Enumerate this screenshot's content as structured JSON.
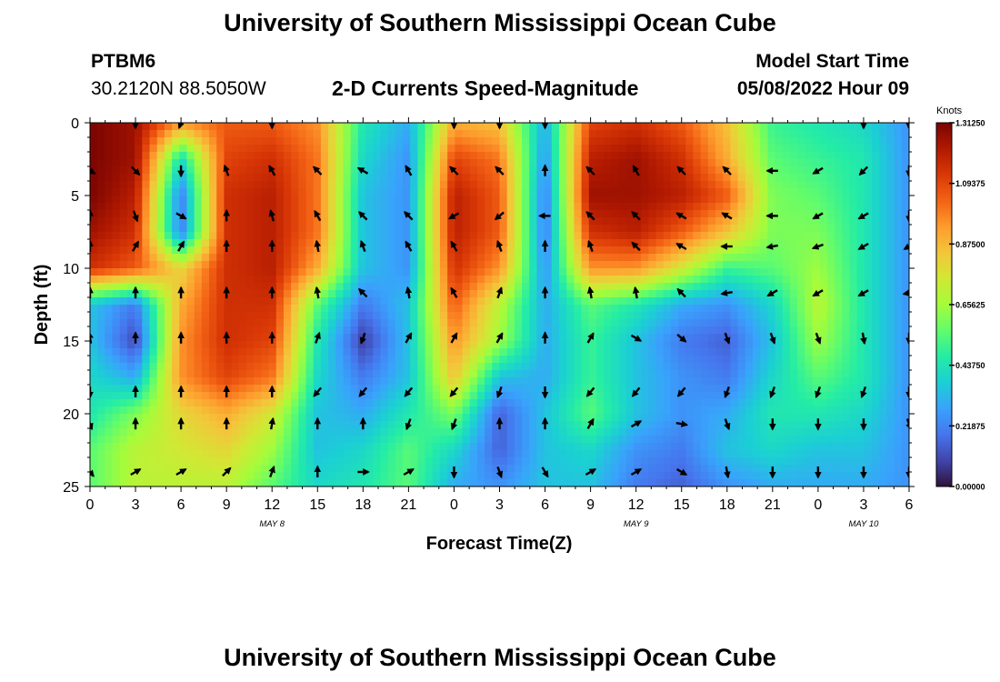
{
  "header": {
    "title": "University of Southern Mississippi Ocean Cube",
    "station_id": "PTBM6",
    "station_coords": "30.2120N  88.5050W",
    "subtitle": "2-D Currents Speed-Magnitude",
    "model_start_label": "Model Start Time",
    "model_start_value": "05/08/2022 Hour 09"
  },
  "footer": {
    "title": "University of Southern Mississippi Ocean Cube"
  },
  "chart_data": {
    "type": "heatmap",
    "title": "2-D Currents Speed-Magnitude",
    "xlabel": "Forecast Time(Z)",
    "ylabel": "Depth (ft)",
    "x_tick_labels": [
      "0",
      "3",
      "6",
      "9",
      "12",
      "15",
      "18",
      "21",
      "0",
      "3",
      "6",
      "9",
      "12",
      "15",
      "18",
      "21",
      "0",
      "3",
      "6"
    ],
    "x_tick_hours": [
      0,
      3,
      6,
      9,
      12,
      15,
      18,
      21,
      24,
      27,
      30,
      33,
      36,
      39,
      42,
      45,
      48,
      51,
      54
    ],
    "xlim_hours": [
      0,
      54
    ],
    "date_labels": [
      {
        "text": "MAY 8",
        "hour": 12
      },
      {
        "text": "MAY 9",
        "hour": 36
      },
      {
        "text": "MAY 10",
        "hour": 51
      }
    ],
    "y_ticks": [
      0,
      5,
      10,
      15,
      20,
      25
    ],
    "ylim": [
      0,
      25
    ],
    "y_inverted": true,
    "colorbar": {
      "unit": "Knots",
      "labels": [
        "1.31250",
        "1.09375",
        "0.87500",
        "0.65625",
        "0.43750",
        "0.21875",
        "0.00000"
      ],
      "min": 0.0,
      "max": 1.3125,
      "colors": [
        "#30123b",
        "#4145ab",
        "#4675ed",
        "#39a2fc",
        "#1bcfd4",
        "#24eca6",
        "#61fc6c",
        "#a4fc3b",
        "#d1e834",
        "#f3c63a",
        "#fe9b2d",
        "#f36315",
        "#d93806",
        "#b11901",
        "#7a0402"
      ]
    },
    "speed_hours": [
      0,
      3,
      6,
      9,
      12,
      15,
      18,
      21,
      24,
      27,
      30,
      33,
      36,
      39,
      42,
      45,
      48,
      51,
      54
    ],
    "speed_depths": [
      0,
      2.5,
      5,
      7.5,
      10,
      12.5,
      15,
      17.5,
      20,
      22.5,
      25
    ],
    "speed": [
      [
        1.31,
        1.25,
        0.95,
        1.05,
        1.05,
        0.95,
        0.45,
        0.3,
        0.9,
        0.85,
        0.3,
        1.1,
        1.15,
        1.05,
        0.85,
        0.5,
        0.45,
        0.4,
        0.25
      ],
      [
        1.31,
        1.25,
        0.4,
        1.1,
        1.15,
        1.0,
        0.4,
        0.25,
        1.1,
        1.0,
        0.25,
        1.2,
        1.25,
        1.15,
        0.9,
        0.55,
        0.5,
        0.45,
        0.25
      ],
      [
        1.31,
        1.2,
        0.2,
        1.15,
        1.2,
        1.0,
        0.35,
        0.25,
        1.2,
        1.05,
        0.2,
        1.25,
        1.25,
        1.2,
        1.05,
        0.6,
        0.55,
        0.45,
        0.25
      ],
      [
        1.25,
        1.15,
        0.2,
        1.15,
        1.2,
        1.0,
        0.35,
        0.25,
        1.2,
        1.05,
        0.2,
        1.15,
        1.2,
        1.05,
        0.85,
        0.6,
        0.6,
        0.45,
        0.25
      ],
      [
        1.15,
        1.05,
        0.8,
        1.15,
        1.2,
        0.9,
        0.35,
        0.25,
        1.15,
        0.95,
        0.25,
        0.95,
        0.95,
        0.75,
        0.5,
        0.55,
        0.65,
        0.45,
        0.25
      ],
      [
        0.35,
        0.2,
        0.9,
        1.15,
        1.15,
        0.55,
        0.2,
        0.35,
        1.05,
        0.7,
        0.3,
        0.55,
        0.45,
        0.3,
        0.25,
        0.4,
        0.7,
        0.45,
        0.25
      ],
      [
        0.35,
        0.1,
        0.95,
        1.15,
        1.1,
        0.45,
        0.08,
        0.35,
        0.95,
        0.65,
        0.3,
        0.5,
        0.35,
        0.2,
        0.15,
        0.35,
        0.65,
        0.45,
        0.25
      ],
      [
        0.4,
        0.3,
        0.95,
        1.1,
        1.0,
        0.4,
        0.2,
        0.35,
        0.85,
        0.35,
        0.3,
        0.5,
        0.35,
        0.25,
        0.2,
        0.4,
        0.55,
        0.45,
        0.25
      ],
      [
        0.45,
        0.6,
        0.8,
        0.9,
        0.75,
        0.35,
        0.3,
        0.45,
        0.6,
        0.15,
        0.35,
        0.55,
        0.35,
        0.25,
        0.3,
        0.45,
        0.45,
        0.4,
        0.25
      ],
      [
        0.55,
        0.7,
        0.75,
        0.8,
        0.65,
        0.35,
        0.4,
        0.55,
        0.4,
        0.15,
        0.35,
        0.4,
        0.25,
        0.2,
        0.35,
        0.4,
        0.35,
        0.35,
        0.25
      ],
      [
        0.55,
        0.7,
        0.7,
        0.7,
        0.55,
        0.4,
        0.45,
        0.55,
        0.3,
        0.25,
        0.35,
        0.35,
        0.2,
        0.15,
        0.25,
        0.3,
        0.3,
        0.3,
        0.25
      ]
    ],
    "vectors": {
      "hours": [
        0,
        3,
        6,
        9,
        12,
        15,
        18,
        21,
        24,
        27,
        30,
        33,
        36,
        39,
        42,
        45,
        48,
        51,
        54
      ],
      "depths": [
        0,
        3.3,
        6.4,
        8.5,
        11.7,
        14.8,
        18.5,
        20.7,
        24
      ],
      "angles_deg": [
        [
          null,
          180,
          200,
          null,
          180,
          null,
          null,
          null,
          180,
          180,
          180,
          null,
          null,
          null,
          null,
          null,
          null,
          180,
          180
        ],
        [
          120,
          135,
          180,
          -20,
          -30,
          -45,
          -60,
          -30,
          -45,
          -45,
          0,
          -45,
          -30,
          -45,
          -45,
          -90,
          -120,
          -135,
          180
        ],
        [
          0,
          160,
          120,
          0,
          -15,
          -30,
          -45,
          -45,
          -120,
          -130,
          -90,
          -45,
          -45,
          -60,
          -60,
          -90,
          -120,
          -120,
          180
        ],
        [
          0,
          30,
          30,
          0,
          0,
          -10,
          -20,
          -30,
          -30,
          -20,
          0,
          -20,
          -45,
          -60,
          -90,
          -100,
          -110,
          -120,
          -120
        ],
        [
          0,
          0,
          0,
          0,
          0,
          -10,
          -45,
          -10,
          -30,
          20,
          0,
          -10,
          -10,
          -45,
          -100,
          -120,
          -120,
          -120,
          -100
        ],
        [
          -10,
          0,
          0,
          0,
          0,
          20,
          200,
          30,
          30,
          30,
          0,
          30,
          120,
          130,
          160,
          160,
          160,
          170,
          180
        ],
        [
          180,
          0,
          0,
          0,
          0,
          220,
          220,
          220,
          220,
          200,
          180,
          220,
          220,
          220,
          200,
          200,
          200,
          200,
          180
        ],
        [
          160,
          0,
          0,
          0,
          10,
          0,
          0,
          200,
          200,
          0,
          0,
          30,
          60,
          100,
          160,
          180,
          180,
          180,
          160
        ],
        [
          140,
          60,
          60,
          45,
          20,
          0,
          90,
          60,
          180,
          160,
          150,
          60,
          60,
          120,
          170,
          180,
          180,
          180,
          180
        ]
      ]
    }
  }
}
